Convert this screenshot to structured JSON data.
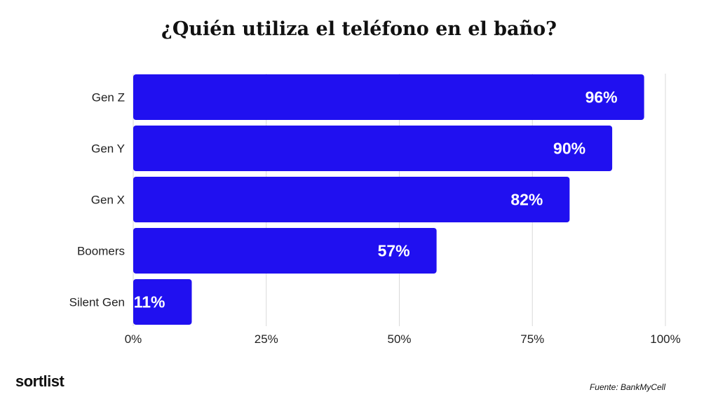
{
  "chart_data": {
    "type": "bar",
    "orientation": "horizontal",
    "title": "¿Quién utiliza el teléfono en el baño?",
    "categories": [
      "Gen Z",
      "Gen Y",
      "Gen X",
      "Boomers",
      "Silent Gen"
    ],
    "values": [
      96,
      90,
      82,
      57,
      11
    ],
    "value_labels": [
      "96%",
      "90%",
      "82%",
      "57%",
      "11%"
    ],
    "xlim": [
      0,
      100
    ],
    "x_ticks": [
      0,
      25,
      50,
      75,
      100
    ],
    "x_tick_labels": [
      "0%",
      "25%",
      "50%",
      "75%",
      "100%"
    ],
    "grid": "vertical",
    "bar_color": "#2010F0"
  },
  "footer": {
    "brand": "sortlist",
    "source": "Fuente: BankMyCell"
  },
  "colors": {
    "grid": "#d9d9d9",
    "text": "#222222",
    "value_text": "#ffffff"
  }
}
